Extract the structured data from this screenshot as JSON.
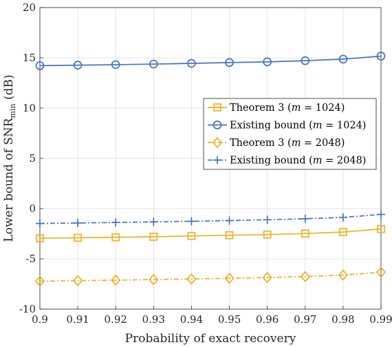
{
  "chart_data": {
    "type": "line",
    "xlabel": "Probability of exact recovery",
    "ylabel_main": "Lower bound of SNR",
    "ylabel_sub": "min",
    "ylabel_unit": " (dB)",
    "xlim": [
      0.9,
      0.99
    ],
    "ylim": [
      -10,
      20
    ],
    "xticks": [
      "0.9",
      "0.91",
      "0.92",
      "0.93",
      "0.94",
      "0.95",
      "0.96",
      "0.97",
      "0.98",
      "0.99"
    ],
    "yticks": [
      "-10",
      "-5",
      "0",
      "5",
      "10",
      "15",
      "20"
    ],
    "grid": true,
    "legend_position": "center-right",
    "x": [
      0.9,
      0.91,
      0.92,
      0.93,
      0.94,
      0.95,
      0.96,
      0.97,
      0.98,
      0.99
    ],
    "series": [
      {
        "name_prefix": "Theorem 3 (",
        "name_m": "m",
        "name_suffix": " = 1024)",
        "values": [
          -2.95,
          -2.9,
          -2.85,
          -2.8,
          -2.72,
          -2.65,
          -2.58,
          -2.48,
          -2.33,
          -2.03
        ],
        "color": "#EDB120",
        "marker": "square",
        "dash": "solid"
      },
      {
        "name_prefix": "Existing bound (",
        "name_m": "m",
        "name_suffix": " = 1024)",
        "values": [
          14.22,
          14.27,
          14.32,
          14.38,
          14.45,
          14.53,
          14.6,
          14.72,
          14.87,
          15.17
        ],
        "color": "#4472C4",
        "marker": "circle",
        "dash": "solid"
      },
      {
        "name_prefix": "Theorem 3 (",
        "name_m": "m",
        "name_suffix": " = 2048)",
        "values": [
          -7.22,
          -7.17,
          -7.12,
          -7.06,
          -7.0,
          -6.93,
          -6.86,
          -6.76,
          -6.61,
          -6.33
        ],
        "color": "#EDB120",
        "marker": "diamond",
        "dash": "dashdot"
      },
      {
        "name_prefix": "Existing bound (",
        "name_m": "m",
        "name_suffix": " = 2048)",
        "values": [
          -1.48,
          -1.43,
          -1.38,
          -1.32,
          -1.26,
          -1.19,
          -1.11,
          -1.01,
          -0.87,
          -0.58
        ],
        "color": "#4472C4",
        "marker": "plus",
        "dash": "dashdot"
      }
    ]
  }
}
